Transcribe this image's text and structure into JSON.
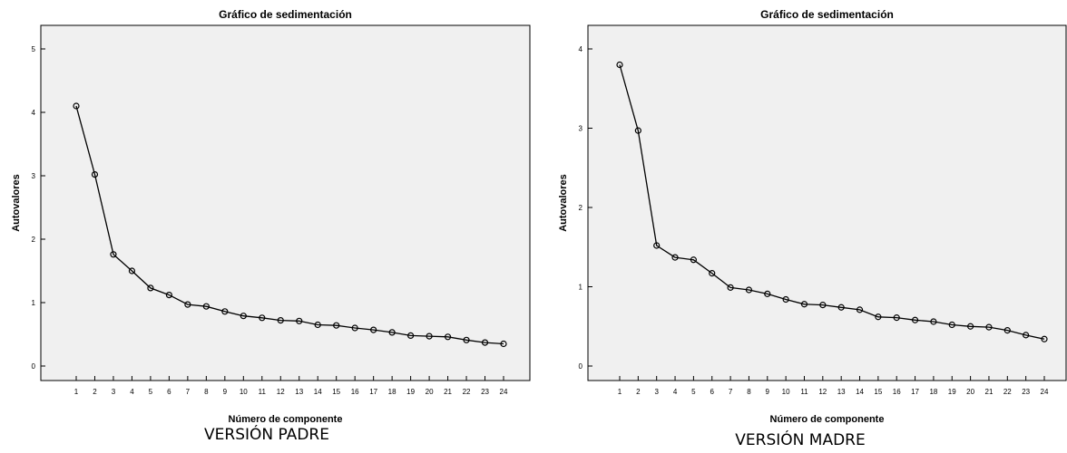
{
  "chart_data": [
    {
      "type": "line",
      "title": "Gráfico de sedimentación",
      "xlabel": "Número de componente",
      "ylabel": "Autovalores",
      "caption": "VERSIÓN PADRE",
      "ylim": [
        0,
        5
      ],
      "yticks": [
        "0",
        "1",
        "2",
        "3",
        "4",
        "5"
      ],
      "categories": [
        "1",
        "2",
        "3",
        "4",
        "5",
        "6",
        "7",
        "8",
        "9",
        "10",
        "11",
        "12",
        "13",
        "14",
        "15",
        "16",
        "17",
        "18",
        "19",
        "20",
        "21",
        "22",
        "23",
        "24"
      ],
      "values": [
        4.1,
        3.02,
        1.76,
        1.5,
        1.23,
        1.12,
        0.97,
        0.94,
        0.86,
        0.79,
        0.76,
        0.72,
        0.71,
        0.65,
        0.64,
        0.6,
        0.57,
        0.53,
        0.48,
        0.47,
        0.46,
        0.41,
        0.37,
        0.35
      ],
      "grid": false,
      "colors": {
        "line": "#000000",
        "plot_bg": "#f0f0f0"
      }
    },
    {
      "type": "line",
      "title": "Gráfico de sedimentación",
      "xlabel": "Número de componente",
      "ylabel": "Autovalores",
      "caption": "VERSIÓN MADRE",
      "ylim": [
        0,
        4
      ],
      "yticks": [
        "0",
        "1",
        "2",
        "3",
        "4"
      ],
      "categories": [
        "1",
        "2",
        "3",
        "4",
        "5",
        "6",
        "7",
        "8",
        "9",
        "10",
        "11",
        "12",
        "13",
        "14",
        "15",
        "16",
        "17",
        "18",
        "19",
        "20",
        "21",
        "22",
        "23",
        "24"
      ],
      "values": [
        3.8,
        2.97,
        1.52,
        1.37,
        1.34,
        1.17,
        0.99,
        0.96,
        0.91,
        0.84,
        0.78,
        0.77,
        0.74,
        0.71,
        0.62,
        0.61,
        0.58,
        0.56,
        0.52,
        0.5,
        0.49,
        0.45,
        0.39,
        0.34
      ],
      "grid": false,
      "colors": {
        "line": "#000000",
        "plot_bg": "#f0f0f0"
      }
    }
  ]
}
